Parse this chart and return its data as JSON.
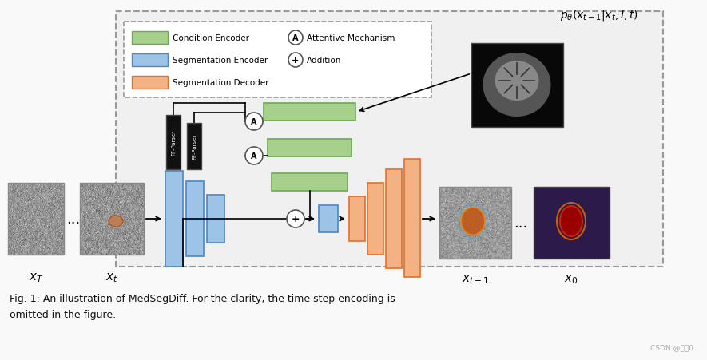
{
  "fig_bg": "#f9f9f9",
  "title_text": "$p_{\\theta}(x_{t-1}|x_t, I, t)$",
  "caption_line1": "Fig. 1: An illustration of MedSegDiff. For the clarity, the time step encoding is",
  "caption_line2": "omitted in the figure.",
  "watermark": "CSDN @小刀0",
  "legend_items": [
    {
      "label": "Condition Encoder",
      "color": "#a8d08d",
      "ec": "#6aaa50"
    },
    {
      "label": "Segmentation Encoder",
      "color": "#9dc3e6",
      "ec": "#4a86c8"
    },
    {
      "label": "Segmentation Decoder",
      "color": "#f4b183",
      "ec": "#e07030"
    }
  ],
  "attentive_label": "Attentive Mechanism",
  "addition_label": "Addition",
  "ff_parser_label": "FF-Parser",
  "green_color": "#a8d08d",
  "green_ec": "#6aaa50",
  "blue_color": "#9dc3e6",
  "blue_ec": "#4a86c8",
  "orange_color": "#f4b183",
  "orange_ec": "#e07030",
  "black_color": "#111111",
  "gray_image": "#b0b0b0",
  "dashed_box_color": "#999999",
  "dashed_box_bg": "#f0f0f0"
}
